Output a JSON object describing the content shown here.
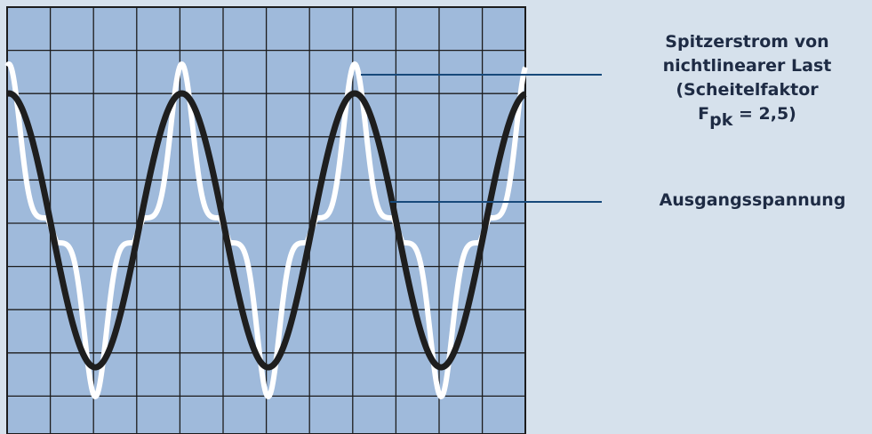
{
  "labels": {
    "peak_current": {
      "line1": "Spitzerstrom von",
      "line2": "nichtlinearer Last",
      "line3": "(Scheitelfaktor",
      "symbol": "F",
      "subscript": "pk",
      "value": " = 2,5)"
    },
    "output_voltage": "Ausgangsspannung"
  },
  "colors": {
    "background": "#d6e1ec",
    "screen": "#9fbadb",
    "grid": "#1c1c1c",
    "voltage_wave": "#1e1e1e",
    "current_wave": "#ffffff",
    "leader_line": "#17497a",
    "text": "#1e2b44"
  }
}
